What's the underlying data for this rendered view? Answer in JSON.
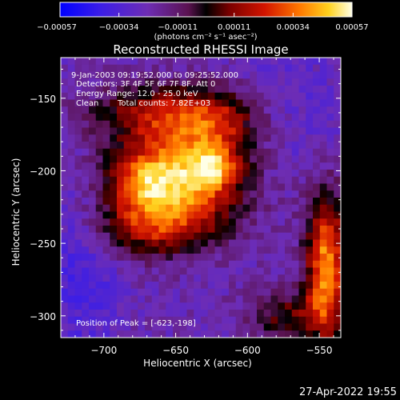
{
  "chart_data": {
    "type": "heatmap",
    "title": "Reconstructed RHESSI Image",
    "xlabel": "Heliocentric X (arcsec)",
    "ylabel": "Heliocentric Y (arcsec)",
    "xlim": [
      -730,
      -535
    ],
    "ylim": [
      -315,
      -122
    ],
    "x_ticks": [
      -700,
      -650,
      -600,
      -550
    ],
    "x_tick_labels": [
      "−700",
      "−650",
      "−600",
      "−550"
    ],
    "y_ticks": [
      -150,
      -200,
      -250,
      -300
    ],
    "y_tick_labels": [
      "−150",
      "−200",
      "−250",
      "−300"
    ],
    "colorbar": {
      "min": -0.00057,
      "max": 0.00057,
      "ticks": [
        -0.00057,
        -0.00034,
        -0.00011,
        0.00011,
        0.00034,
        0.00057
      ],
      "tick_labels": [
        "−0.00057",
        "−0.00034",
        "−0.00011",
        "0.00011",
        "0.00034",
        "0.00057"
      ],
      "units": "(photons cm⁻² s⁻¹ asec⁻²)",
      "colormap": "rainbow-temperature"
    },
    "annotations": {
      "time_range": "9-Jan-2003 09:19:52.000 to 09:25:52.000",
      "detectors": "Detectors: 3F 4F 5F 6F 7F 8F, Att 0",
      "energy_range": "Energy Range: 12.0 - 25.0 keV",
      "method": "Clean",
      "total_counts": "Total counts: 7.82E+03",
      "peak_position": "Position of Peak = [-623,-198]"
    },
    "peak": [
      -623,
      -198
    ],
    "grid": false
  },
  "footer": {
    "timestamp": "27-Apr-2022 19:55"
  },
  "colors": {
    "background": "#000000",
    "text": "#ffffff"
  }
}
